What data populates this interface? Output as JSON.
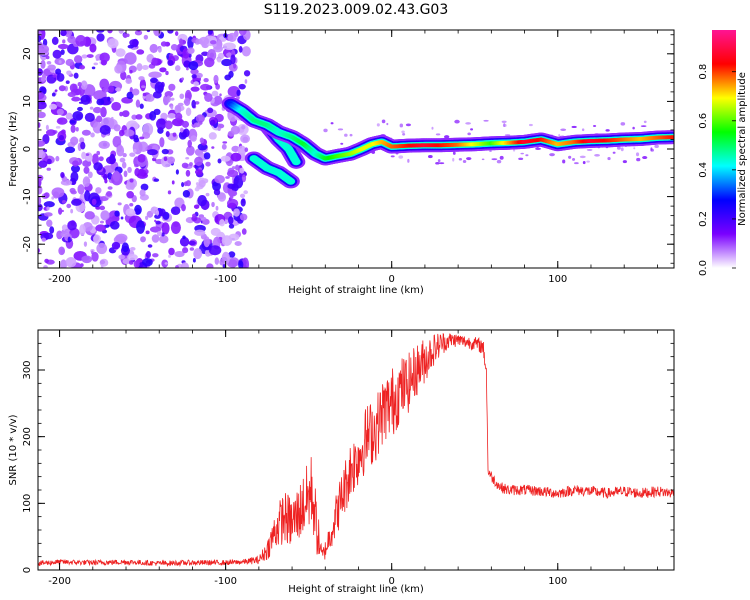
{
  "title": "S119.2023.009.02.43.G03",
  "chart_data": [
    {
      "type": "heatmap",
      "xlabel": "Height of straight line (km)",
      "ylabel": "Frequency (Hz)",
      "xlim": [
        -213,
        170
      ],
      "ylim": [
        -25,
        25
      ],
      "x_ticks": [
        -200,
        -100,
        0,
        100
      ],
      "y_ticks": [
        -20,
        -10,
        0,
        10,
        20
      ],
      "colorbar": {
        "label": "Normalized spectral amplitude",
        "range": [
          0,
          0.97
        ],
        "ticks": [
          0.0,
          0.2,
          0.4,
          0.6,
          0.8
        ],
        "colormap": [
          "#ffffff",
          "#7a00ff",
          "#0000ff",
          "#00ffff",
          "#00ff00",
          "#ffff00",
          "#ff0000",
          "#ff1493"
        ]
      },
      "noise_region_x": [
        -213,
        -87
      ],
      "ridge": {
        "x": [
          -97,
          -90,
          -83,
          -75,
          -68,
          -60,
          -53,
          -46,
          -40,
          -33,
          -25,
          -18,
          -12,
          -6,
          0,
          10,
          20,
          30,
          40,
          50,
          60,
          70,
          80,
          90,
          100,
          110,
          120,
          130,
          140,
          150,
          160,
          170
        ],
        "y": [
          9.5,
          8,
          6,
          5,
          3.5,
          2.5,
          1,
          -1,
          -2,
          -1.5,
          -1,
          0,
          1,
          1.5,
          0.5,
          0.7,
          0.8,
          0.8,
          0.9,
          1,
          1.2,
          1.3,
          1.5,
          2,
          1,
          1.5,
          1.7,
          1.8,
          2,
          2.1,
          2.4,
          2.5
        ],
        "amplitude": [
          0.3,
          0.45,
          0.5,
          0.5,
          0.45,
          0.5,
          0.55,
          0.45,
          0.55,
          0.6,
          0.65,
          0.7,
          0.7,
          0.75,
          0.8,
          0.85,
          0.9,
          0.85,
          0.8,
          0.7,
          0.6,
          0.75,
          0.9,
          0.85,
          0.75,
          0.8,
          0.9,
          0.85,
          0.8,
          0.75,
          0.8,
          0.85
        ]
      },
      "side_tracks": [
        {
          "x": [
            -83,
            -75,
            -68,
            -60
          ],
          "y": [
            -2,
            -4,
            -5,
            -7
          ]
        },
        {
          "x": [
            -75,
            -68,
            -62,
            -57
          ],
          "y": [
            5,
            2,
            0,
            -3
          ]
        }
      ]
    },
    {
      "type": "line",
      "xlabel": "Height of straight line (km)",
      "ylabel": "SNR (10 * v/v)",
      "xlim": [
        -213,
        170
      ],
      "ylim": [
        0,
        360
      ],
      "x_ticks": [
        -200,
        -100,
        0,
        100
      ],
      "y_ticks": [
        0,
        100,
        200,
        300
      ],
      "series": [
        {
          "color": "#ee2222",
          "x": [
            -213,
            -200,
            -180,
            -160,
            -140,
            -120,
            -100,
            -90,
            -80,
            -75,
            -70,
            -65,
            -60,
            -55,
            -50,
            -48,
            -45,
            -42,
            -40,
            -35,
            -30,
            -25,
            -20,
            -15,
            -10,
            -5,
            0,
            5,
            10,
            15,
            20,
            25,
            30,
            35,
            40,
            45,
            50,
            55,
            57,
            58,
            60,
            65,
            70,
            80,
            90,
            100,
            110,
            120,
            130,
            140,
            150,
            160,
            170
          ],
          "y": [
            10,
            12,
            11,
            12,
            10,
            11,
            11,
            12,
            15,
            30,
            60,
            80,
            70,
            90,
            110,
            120,
            60,
            20,
            30,
            70,
            110,
            150,
            170,
            200,
            210,
            240,
            250,
            270,
            280,
            300,
            315,
            330,
            340,
            345,
            345,
            342,
            340,
            335,
            300,
            150,
            140,
            125,
            120,
            120,
            118,
            115,
            120,
            118,
            115,
            118,
            115,
            118,
            115
          ],
          "noise": [
            4,
            4,
            4,
            4,
            4,
            4,
            4,
            4,
            6,
            15,
            30,
            40,
            40,
            45,
            55,
            60,
            40,
            12,
            15,
            30,
            40,
            45,
            45,
            50,
            50,
            50,
            55,
            50,
            45,
            40,
            35,
            25,
            18,
            12,
            10,
            10,
            10,
            12,
            15,
            8,
            8,
            8,
            8,
            8,
            8,
            8,
            8,
            8,
            8,
            8,
            8,
            8,
            8
          ]
        }
      ]
    }
  ]
}
